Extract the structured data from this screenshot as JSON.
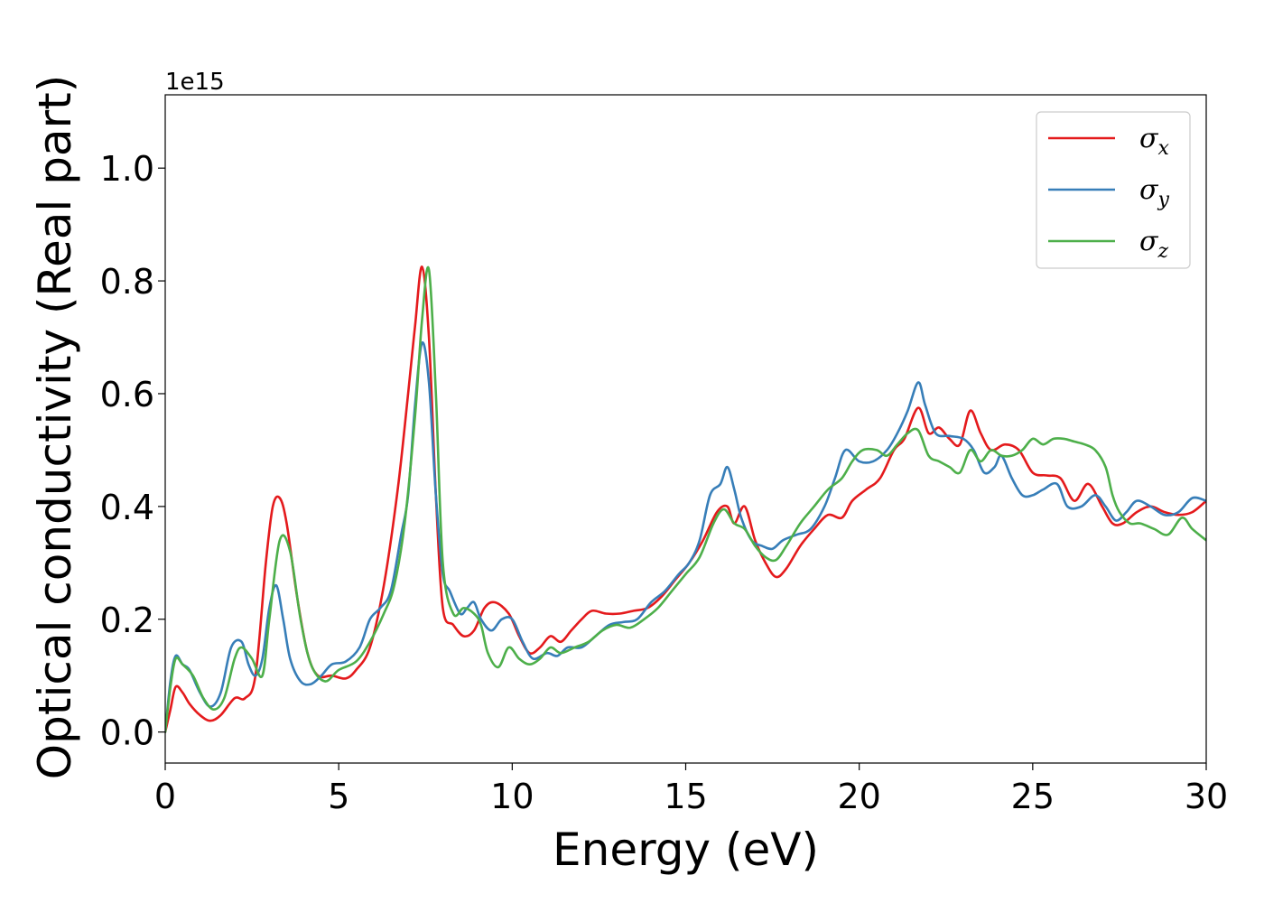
{
  "chart_data": {
    "type": "line",
    "title": "",
    "xlabel": "Energy (eV)",
    "ylabel": "Optical conductivity (Real part)",
    "y_offset_text": "1e15",
    "xlim": [
      0,
      30
    ],
    "ylim": [
      -0.055,
      1.13
    ],
    "xticks": [
      0,
      5,
      10,
      15,
      20,
      25,
      30
    ],
    "xtick_labels": [
      "0",
      "5",
      "10",
      "15",
      "20",
      "25",
      "30"
    ],
    "yticks": [
      0.0,
      0.2,
      0.4,
      0.6,
      0.8,
      1.0
    ],
    "ytick_labels": [
      "0.0",
      "0.2",
      "0.4",
      "0.6",
      "0.8",
      "1.0"
    ],
    "grid": false,
    "legend_position": "top-right",
    "series": [
      {
        "name": "σx",
        "symbol": "σ",
        "subscript": "x",
        "color": "#e41a1c",
        "x": [
          0,
          0.15,
          0.3,
          0.5,
          0.7,
          1.0,
          1.3,
          1.6,
          2.0,
          2.3,
          2.6,
          2.9,
          3.1,
          3.3,
          3.5,
          3.8,
          4.1,
          4.4,
          4.8,
          5.2,
          5.5,
          5.9,
          6.3,
          6.7,
          7.0,
          7.2,
          7.4,
          7.6,
          7.8,
          8.0,
          8.3,
          8.6,
          8.9,
          9.2,
          9.5,
          9.9,
          10.2,
          10.5,
          10.8,
          11.1,
          11.4,
          11.7,
          12.0,
          12.3,
          12.7,
          13.1,
          13.5,
          13.9,
          14.3,
          14.7,
          15.1,
          15.5,
          15.9,
          16.2,
          16.4,
          16.7,
          17.0,
          17.3,
          17.6,
          17.9,
          18.3,
          18.7,
          19.1,
          19.5,
          19.8,
          20.2,
          20.6,
          21.0,
          21.3,
          21.7,
          22.0,
          22.3,
          22.6,
          22.9,
          23.2,
          23.5,
          23.8,
          24.2,
          24.6,
          25.0,
          25.4,
          25.8,
          26.2,
          26.6,
          27.0,
          27.3,
          27.6,
          28.0,
          28.4,
          28.8,
          29.2,
          29.6,
          30.0
        ],
        "y": [
          0.0,
          0.04,
          0.08,
          0.07,
          0.05,
          0.03,
          0.02,
          0.03,
          0.06,
          0.06,
          0.1,
          0.3,
          0.4,
          0.415,
          0.37,
          0.24,
          0.14,
          0.1,
          0.1,
          0.095,
          0.11,
          0.15,
          0.26,
          0.43,
          0.6,
          0.72,
          0.825,
          0.7,
          0.42,
          0.22,
          0.19,
          0.17,
          0.18,
          0.22,
          0.23,
          0.21,
          0.17,
          0.14,
          0.15,
          0.17,
          0.16,
          0.18,
          0.2,
          0.215,
          0.21,
          0.21,
          0.215,
          0.22,
          0.24,
          0.27,
          0.3,
          0.34,
          0.39,
          0.4,
          0.37,
          0.4,
          0.34,
          0.3,
          0.275,
          0.29,
          0.33,
          0.36,
          0.385,
          0.38,
          0.41,
          0.43,
          0.45,
          0.5,
          0.52,
          0.575,
          0.53,
          0.54,
          0.52,
          0.51,
          0.57,
          0.53,
          0.5,
          0.51,
          0.5,
          0.46,
          0.455,
          0.45,
          0.41,
          0.44,
          0.4,
          0.37,
          0.37,
          0.39,
          0.4,
          0.39,
          0.385,
          0.39,
          0.41
        ]
      },
      {
        "name": "σy",
        "symbol": "σ",
        "subscript": "y",
        "color": "#377eb8",
        "x": [
          0,
          0.15,
          0.3,
          0.5,
          0.7,
          1.0,
          1.3,
          1.6,
          1.9,
          2.2,
          2.4,
          2.6,
          2.8,
          3.0,
          3.2,
          3.4,
          3.6,
          3.9,
          4.2,
          4.5,
          4.8,
          5.2,
          5.6,
          5.9,
          6.2,
          6.5,
          6.8,
          7.0,
          7.2,
          7.4,
          7.6,
          7.8,
          8.0,
          8.2,
          8.5,
          8.7,
          8.9,
          9.1,
          9.4,
          9.7,
          10.0,
          10.3,
          10.6,
          11.0,
          11.3,
          11.6,
          12.0,
          12.4,
          12.8,
          13.2,
          13.6,
          14.0,
          14.4,
          14.8,
          15.1,
          15.4,
          15.7,
          16.0,
          16.2,
          16.4,
          16.6,
          16.9,
          17.2,
          17.5,
          17.8,
          18.2,
          18.6,
          19.0,
          19.3,
          19.6,
          20.0,
          20.4,
          20.8,
          21.1,
          21.4,
          21.7,
          21.9,
          22.2,
          22.6,
          23.0,
          23.3,
          23.6,
          23.9,
          24.1,
          24.4,
          24.7,
          25.0,
          25.3,
          25.7,
          26.0,
          26.4,
          26.8,
          27.1,
          27.4,
          27.7,
          28.0,
          28.4,
          28.8,
          29.2,
          29.6,
          30.0
        ],
        "y": [
          0.0,
          0.09,
          0.135,
          0.12,
          0.11,
          0.07,
          0.045,
          0.07,
          0.15,
          0.16,
          0.12,
          0.1,
          0.13,
          0.22,
          0.26,
          0.2,
          0.13,
          0.09,
          0.085,
          0.1,
          0.12,
          0.125,
          0.15,
          0.2,
          0.22,
          0.25,
          0.35,
          0.42,
          0.58,
          0.69,
          0.62,
          0.42,
          0.28,
          0.25,
          0.21,
          0.22,
          0.23,
          0.2,
          0.18,
          0.2,
          0.2,
          0.16,
          0.13,
          0.14,
          0.135,
          0.15,
          0.15,
          0.17,
          0.19,
          0.195,
          0.2,
          0.23,
          0.25,
          0.28,
          0.3,
          0.34,
          0.42,
          0.44,
          0.47,
          0.43,
          0.38,
          0.34,
          0.33,
          0.325,
          0.34,
          0.35,
          0.36,
          0.4,
          0.45,
          0.5,
          0.48,
          0.48,
          0.5,
          0.53,
          0.57,
          0.62,
          0.58,
          0.53,
          0.525,
          0.52,
          0.5,
          0.46,
          0.47,
          0.49,
          0.45,
          0.42,
          0.42,
          0.43,
          0.44,
          0.4,
          0.4,
          0.42,
          0.4,
          0.375,
          0.39,
          0.41,
          0.4,
          0.385,
          0.39,
          0.415,
          0.41
        ]
      },
      {
        "name": "σz",
        "symbol": "σ",
        "subscript": "z",
        "color": "#4daf4a",
        "x": [
          0,
          0.15,
          0.3,
          0.5,
          0.8,
          1.1,
          1.4,
          1.7,
          2.0,
          2.2,
          2.5,
          2.8,
          3.0,
          3.3,
          3.6,
          3.9,
          4.2,
          4.6,
          5.0,
          5.5,
          5.9,
          6.3,
          6.6,
          6.9,
          7.2,
          7.4,
          7.6,
          7.8,
          8.0,
          8.3,
          8.6,
          8.9,
          9.1,
          9.3,
          9.6,
          9.9,
          10.2,
          10.5,
          10.8,
          11.1,
          11.4,
          11.8,
          12.2,
          12.6,
          13.0,
          13.4,
          13.8,
          14.2,
          14.6,
          15.0,
          15.4,
          15.8,
          16.1,
          16.4,
          16.7,
          17.0,
          17.3,
          17.6,
          17.9,
          18.3,
          18.7,
          19.1,
          19.5,
          19.8,
          20.1,
          20.5,
          20.8,
          21.1,
          21.4,
          21.7,
          22.0,
          22.3,
          22.6,
          22.9,
          23.2,
          23.5,
          23.8,
          24.1,
          24.4,
          24.7,
          25.0,
          25.3,
          25.6,
          25.9,
          26.2,
          26.5,
          26.8,
          27.1,
          27.3,
          27.5,
          27.8,
          28.1,
          28.5,
          28.9,
          29.3,
          29.6,
          30.0
        ],
        "y": [
          0.0,
          0.08,
          0.13,
          0.12,
          0.1,
          0.06,
          0.04,
          0.06,
          0.13,
          0.15,
          0.13,
          0.1,
          0.2,
          0.34,
          0.32,
          0.2,
          0.12,
          0.09,
          0.11,
          0.125,
          0.16,
          0.21,
          0.26,
          0.37,
          0.56,
          0.73,
          0.82,
          0.6,
          0.3,
          0.21,
          0.22,
          0.21,
          0.19,
          0.14,
          0.115,
          0.15,
          0.13,
          0.12,
          0.13,
          0.15,
          0.14,
          0.15,
          0.16,
          0.18,
          0.19,
          0.185,
          0.2,
          0.22,
          0.25,
          0.28,
          0.31,
          0.37,
          0.395,
          0.37,
          0.36,
          0.33,
          0.31,
          0.305,
          0.33,
          0.37,
          0.4,
          0.43,
          0.45,
          0.48,
          0.5,
          0.5,
          0.49,
          0.51,
          0.53,
          0.535,
          0.49,
          0.48,
          0.47,
          0.46,
          0.5,
          0.48,
          0.5,
          0.49,
          0.49,
          0.5,
          0.52,
          0.51,
          0.52,
          0.52,
          0.515,
          0.51,
          0.5,
          0.47,
          0.42,
          0.39,
          0.37,
          0.37,
          0.36,
          0.35,
          0.38,
          0.36,
          0.34
        ]
      }
    ]
  }
}
